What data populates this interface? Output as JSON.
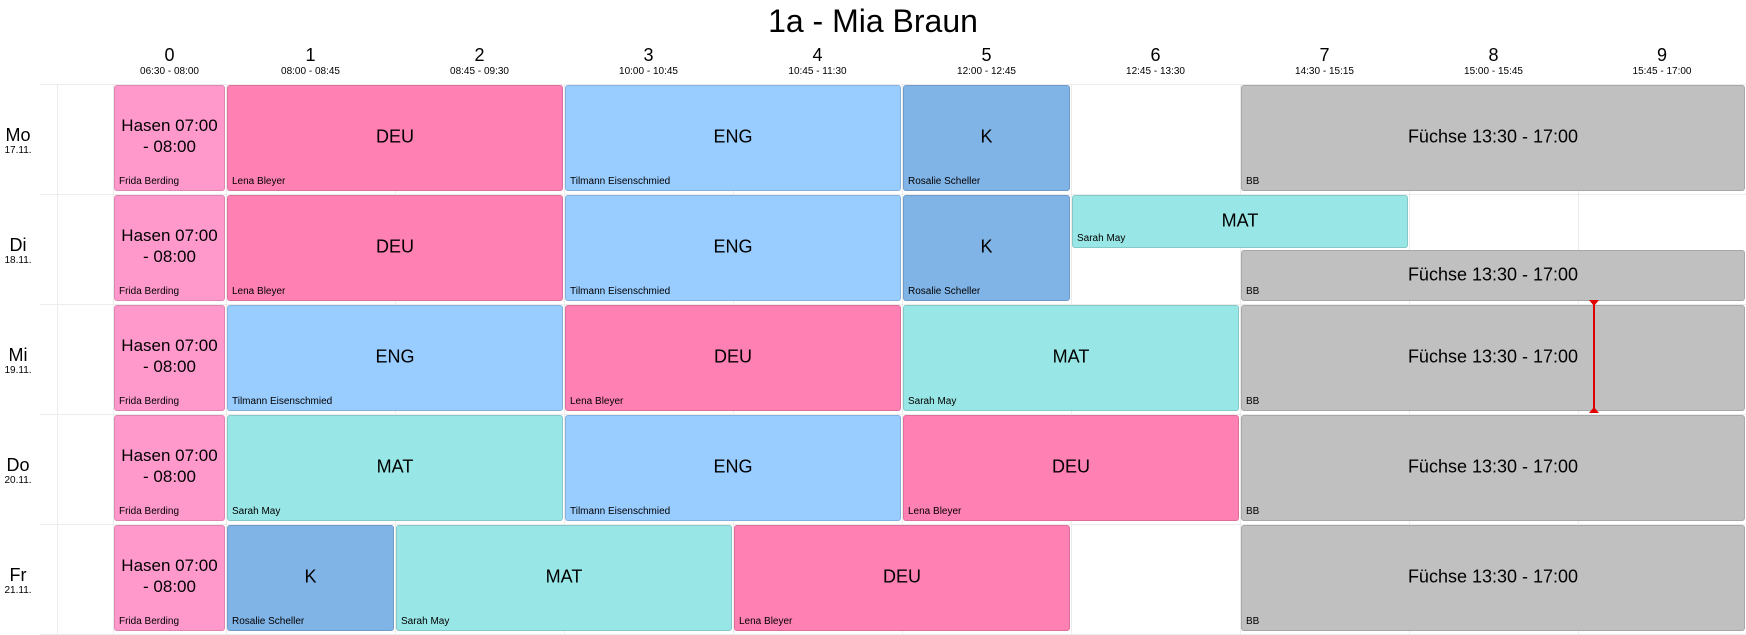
{
  "title": "1a - Mia Braun",
  "periods": [
    {
      "num": "0",
      "time": "06:30 - 08:00"
    },
    {
      "num": "1",
      "time": "08:00 - 08:45"
    },
    {
      "num": "2",
      "time": "08:45 - 09:30"
    },
    {
      "num": "3",
      "time": "10:00 - 10:45"
    },
    {
      "num": "4",
      "time": "10:45 - 11:30"
    },
    {
      "num": "5",
      "time": "12:00 - 12:45"
    },
    {
      "num": "6",
      "time": "12:45 - 13:30"
    },
    {
      "num": "7",
      "time": "14:30 - 15:15"
    },
    {
      "num": "8",
      "time": "15:00 - 15:45"
    },
    {
      "num": "9",
      "time": "15:45 - 17:00"
    }
  ],
  "days": [
    {
      "name": "Mo",
      "date": "17.11."
    },
    {
      "name": "Di",
      "date": "18.11."
    },
    {
      "name": "Mi",
      "date": "19.11."
    },
    {
      "name": "Do",
      "date": "20.11."
    },
    {
      "name": "Fr",
      "date": "21.11."
    }
  ],
  "colors": {
    "betreuung_morning": "#ff99cc",
    "DEU": "#ff80b3",
    "ENG": "#99ccff",
    "K": "#80b3e6",
    "MAT": "#99e6e6",
    "betreuung_afternoon": "#c0c0c0",
    "now_marker": "#e00000"
  },
  "lessons": [
    {
      "day": 0,
      "start": 0,
      "span": 1,
      "subject": "Hasen 07:00 - 08:00",
      "teacher": "Frida Berding",
      "kind": "betreuung_morning"
    },
    {
      "day": 0,
      "start": 1,
      "span": 2,
      "subject": "DEU",
      "teacher": "Lena Bleyer",
      "kind": "DEU"
    },
    {
      "day": 0,
      "start": 3,
      "span": 2,
      "subject": "ENG",
      "teacher": "Tilmann Eisenschmied",
      "kind": "ENG"
    },
    {
      "day": 0,
      "start": 5,
      "span": 1,
      "subject": "K",
      "teacher": "Rosalie Scheller",
      "kind": "K"
    },
    {
      "day": 0,
      "start": 7,
      "span": 3,
      "subject": "Füchse 13:30 - 17:00",
      "teacher": "BB",
      "kind": "betreuung_afternoon"
    },
    {
      "day": 1,
      "start": 0,
      "span": 1,
      "subject": "Hasen 07:00 - 08:00",
      "teacher": "Frida Berding",
      "kind": "betreuung_morning"
    },
    {
      "day": 1,
      "start": 1,
      "span": 2,
      "subject": "DEU",
      "teacher": "Lena Bleyer",
      "kind": "DEU"
    },
    {
      "day": 1,
      "start": 3,
      "span": 2,
      "subject": "ENG",
      "teacher": "Tilmann Eisenschmied",
      "kind": "ENG"
    },
    {
      "day": 1,
      "start": 5,
      "span": 1,
      "subject": "K",
      "teacher": "Rosalie Scheller",
      "kind": "K"
    },
    {
      "day": 1,
      "start": 6,
      "span": 2,
      "subject": "MAT",
      "teacher": "Sarah May",
      "kind": "MAT",
      "half": "top"
    },
    {
      "day": 1,
      "start": 7,
      "span": 3,
      "subject": "Füchse 13:30 - 17:00",
      "teacher": "BB",
      "kind": "betreuung_afternoon",
      "half": "bottom"
    },
    {
      "day": 2,
      "start": 0,
      "span": 1,
      "subject": "Hasen 07:00 - 08:00",
      "teacher": "Frida Berding",
      "kind": "betreuung_morning"
    },
    {
      "day": 2,
      "start": 1,
      "span": 2,
      "subject": "ENG",
      "teacher": "Tilmann Eisenschmied",
      "kind": "ENG"
    },
    {
      "day": 2,
      "start": 3,
      "span": 2,
      "subject": "DEU",
      "teacher": "Lena Bleyer",
      "kind": "DEU"
    },
    {
      "day": 2,
      "start": 5,
      "span": 2,
      "subject": "MAT",
      "teacher": "Sarah May",
      "kind": "MAT"
    },
    {
      "day": 2,
      "start": 7,
      "span": 3,
      "subject": "Füchse 13:30 - 17:00",
      "teacher": "BB",
      "kind": "betreuung_afternoon"
    },
    {
      "day": 3,
      "start": 0,
      "span": 1,
      "subject": "Hasen 07:00 - 08:00",
      "teacher": "Frida Berding",
      "kind": "betreuung_morning"
    },
    {
      "day": 3,
      "start": 1,
      "span": 2,
      "subject": "MAT",
      "teacher": "Sarah May",
      "kind": "MAT"
    },
    {
      "day": 3,
      "start": 3,
      "span": 2,
      "subject": "ENG",
      "teacher": "Tilmann Eisenschmied",
      "kind": "ENG"
    },
    {
      "day": 3,
      "start": 5,
      "span": 2,
      "subject": "DEU",
      "teacher": "Lena Bleyer",
      "kind": "DEU"
    },
    {
      "day": 3,
      "start": 7,
      "span": 3,
      "subject": "Füchse 13:30 - 17:00",
      "teacher": "BB",
      "kind": "betreuung_afternoon"
    },
    {
      "day": 4,
      "start": 0,
      "span": 1,
      "subject": "Hasen 07:00 - 08:00",
      "teacher": "Frida Berding",
      "kind": "betreuung_morning"
    },
    {
      "day": 4,
      "start": 1,
      "span": 1,
      "subject": "K",
      "teacher": "Rosalie Scheller",
      "kind": "K"
    },
    {
      "day": 4,
      "start": 2,
      "span": 2,
      "subject": "MAT",
      "teacher": "Sarah May",
      "kind": "MAT"
    },
    {
      "day": 4,
      "start": 4,
      "span": 2,
      "subject": "DEU",
      "teacher": "Lena Bleyer",
      "kind": "DEU"
    },
    {
      "day": 4,
      "start": 7,
      "span": 3,
      "subject": "Füchse 13:30 - 17:00",
      "teacher": "BB",
      "kind": "betreuung_afternoon"
    }
  ]
}
